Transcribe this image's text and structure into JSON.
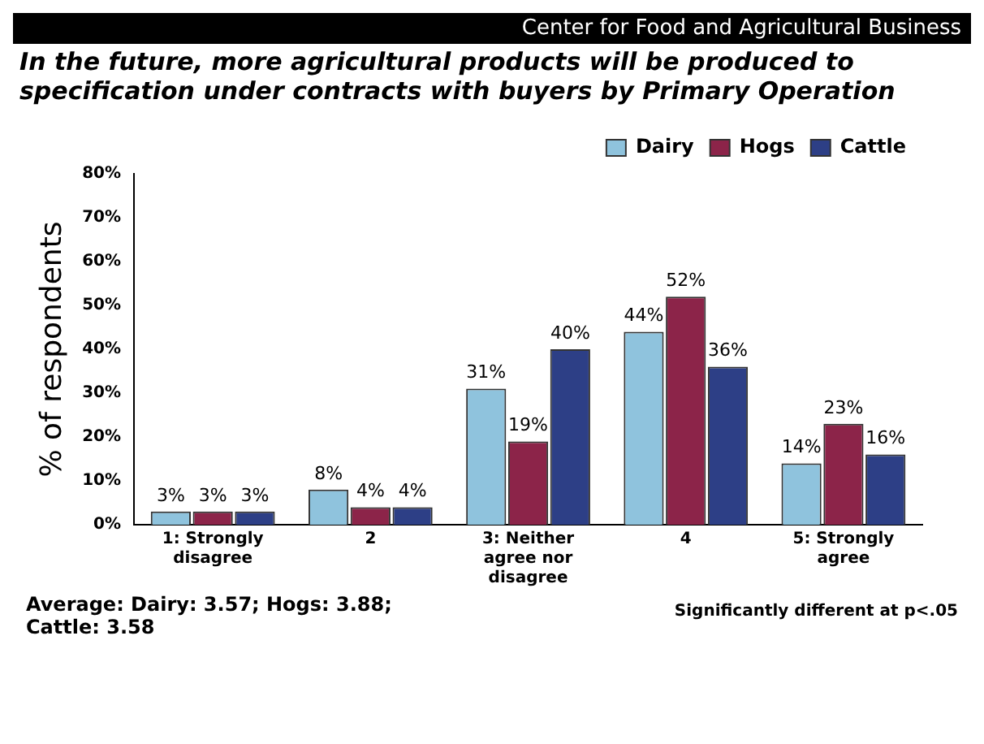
{
  "chart_data": {
    "type": "bar",
    "title": "In the future, more agricultural products will be produced to specification under contracts with buyers by Primary Operation",
    "ylabel": "% of respondents",
    "categories": [
      "1: Strongly disagree",
      "2",
      "3: Neither agree nor disagree",
      "4",
      "5: Strongly agree"
    ],
    "series": [
      {
        "name": "Dairy",
        "color": "#8fc3dd",
        "values": [
          3,
          8,
          31,
          44,
          14
        ],
        "value_labels": [
          "3%",
          "8%",
          "31%",
          "44%",
          "14%"
        ]
      },
      {
        "name": "Hogs",
        "color": "#8c2449",
        "values": [
          3,
          4,
          19,
          52,
          23
        ],
        "value_labels": [
          "3%",
          "4%",
          "19%",
          "52%",
          "23%"
        ]
      },
      {
        "name": "Cattle",
        "color": "#2d3f86",
        "values": [
          3,
          4,
          40,
          36,
          16
        ],
        "value_labels": [
          "3%",
          "4%",
          "40%",
          "36%",
          "16%"
        ]
      }
    ],
    "ylim": [
      0,
      80
    ],
    "yticks": [
      {
        "value": 0,
        "label": "0%"
      },
      {
        "value": 10,
        "label": "10%"
      },
      {
        "value": 20,
        "label": "20%"
      },
      {
        "value": 30,
        "label": "30%"
      },
      {
        "value": 40,
        "label": "40%"
      },
      {
        "value": 50,
        "label": "50%"
      },
      {
        "value": 60,
        "label": "60%"
      },
      {
        "value": 70,
        "label": "70%"
      },
      {
        "value": 80,
        "label": "80%"
      }
    ],
    "grid": false,
    "legend": "top right",
    "annotations": [
      "Center for Food and Agricultural Business",
      "Average:  Dairy: 3.57; Hogs: 3.88; Cattle: 3.58",
      "Significantly different at p<.05"
    ]
  }
}
